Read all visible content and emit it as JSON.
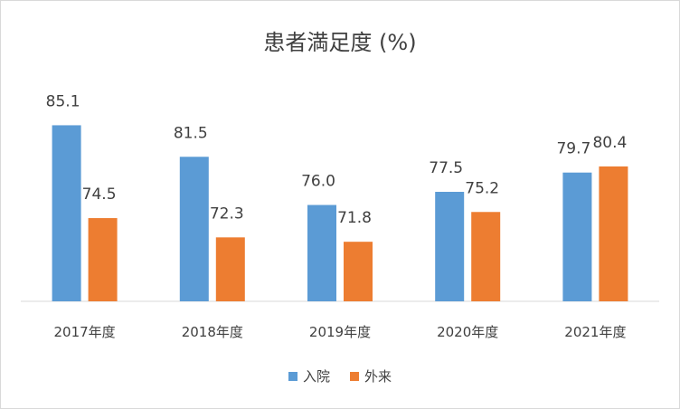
{
  "chart_data": {
    "type": "bar",
    "title": "患者満足度 (%)",
    "categories": [
      "2017年度",
      "2018年度",
      "2019年度",
      "2020年度",
      "2021年度"
    ],
    "series": [
      {
        "name": "入院",
        "values": [
          85.1,
          81.5,
          76.0,
          77.5,
          79.7
        ],
        "labels": [
          "85.1",
          "81.5",
          "76.0",
          "77.5",
          "79.7"
        ],
        "color": "#5b9bd5"
      },
      {
        "name": "外来",
        "values": [
          74.5,
          72.3,
          71.8,
          75.2,
          80.4
        ],
        "labels": [
          "74.5",
          "72.3",
          "71.8",
          "75.2",
          "80.4"
        ],
        "color": "#ed7d31"
      }
    ],
    "ylim": [
      65,
      90
    ],
    "grid": false,
    "legend_position": "bottom"
  }
}
